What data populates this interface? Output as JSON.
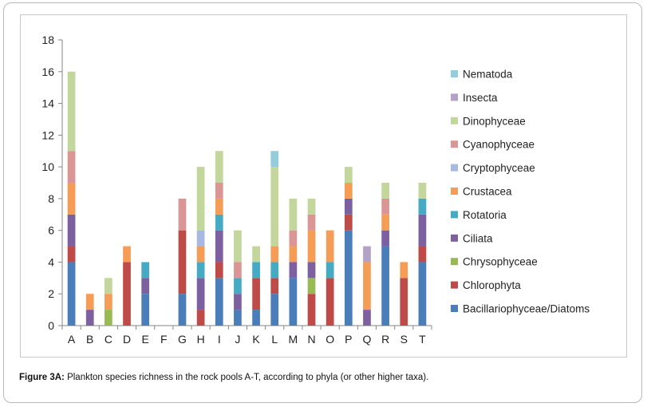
{
  "caption": {
    "label": "Figure 3A:",
    "text": " Plankton species richness in the rock pools A-T, according to phyla (or other higher taxa)."
  },
  "chart_data": {
    "type": "bar",
    "stacked": true,
    "title": "",
    "xlabel": "",
    "ylabel": "",
    "ylim": [
      0,
      18
    ],
    "yticks": [
      0,
      2,
      4,
      6,
      8,
      10,
      12,
      14,
      16,
      18
    ],
    "grid": false,
    "legend_position": "right",
    "categories": [
      "A",
      "B",
      "C",
      "D",
      "E",
      "F",
      "G",
      "H",
      "I",
      "J",
      "K",
      "L",
      "M",
      "N",
      "O",
      "P",
      "Q",
      "R",
      "S",
      "T"
    ],
    "series": [
      {
        "name": "Bacillariophyceae/Diatoms",
        "color": "#4a7ebb",
        "values": [
          4,
          0,
          0,
          0,
          2,
          0,
          2,
          0,
          3,
          1,
          1,
          2,
          3,
          0,
          0,
          6,
          0,
          5,
          0,
          4
        ]
      },
      {
        "name": "Chlorophyta",
        "color": "#be4b48",
        "values": [
          1,
          0,
          0,
          4,
          0,
          0,
          4,
          1,
          1,
          0,
          2,
          1,
          0,
          2,
          3,
          1,
          0,
          0,
          3,
          1
        ]
      },
      {
        "name": "Chrysophyceae",
        "color": "#98b954",
        "values": [
          0,
          0,
          1,
          0,
          0,
          0,
          0,
          0,
          0,
          0,
          0,
          0,
          0,
          1,
          0,
          0,
          0,
          0,
          0,
          0
        ]
      },
      {
        "name": "Ciliata",
        "color": "#7d60a0",
        "values": [
          2,
          1,
          0,
          0,
          1,
          0,
          0,
          2,
          2,
          1,
          0,
          0,
          1,
          1,
          0,
          1,
          1,
          1,
          0,
          2
        ]
      },
      {
        "name": "Rotatoria",
        "color": "#46aac5",
        "values": [
          0,
          0,
          0,
          0,
          1,
          0,
          0,
          1,
          1,
          1,
          1,
          1,
          0,
          0,
          1,
          0,
          0,
          0,
          0,
          1
        ]
      },
      {
        "name": "Crustacea",
        "color": "#f59d56",
        "values": [
          2,
          1,
          1,
          1,
          0,
          0,
          0,
          1,
          1,
          0,
          0,
          1,
          1,
          2,
          2,
          1,
          3,
          1,
          1,
          0
        ]
      },
      {
        "name": "Cryptophyceae",
        "color": "#a7b9e3",
        "values": [
          0,
          0,
          0,
          0,
          0,
          0,
          0,
          1,
          0,
          0,
          0,
          0,
          0,
          0,
          0,
          0,
          0,
          0,
          0,
          0
        ]
      },
      {
        "name": "Cyanophyceae",
        "color": "#d99694",
        "values": [
          2,
          0,
          0,
          0,
          0,
          0,
          2,
          0,
          1,
          1,
          0,
          0,
          1,
          1,
          0,
          0,
          0,
          1,
          0,
          0
        ]
      },
      {
        "name": "Dinophyceae",
        "color": "#c3d69b",
        "values": [
          5,
          0,
          1,
          0,
          0,
          0,
          0,
          4,
          2,
          2,
          1,
          5,
          2,
          1,
          0,
          1,
          0,
          1,
          0,
          1
        ]
      },
      {
        "name": "Insecta",
        "color": "#b3a2c7",
        "values": [
          0,
          0,
          0,
          0,
          0,
          0,
          0,
          0,
          0,
          0,
          0,
          0,
          0,
          0,
          0,
          0,
          1,
          0,
          0,
          0
        ]
      },
      {
        "name": "Nematoda",
        "color": "#93cddd",
        "values": [
          0,
          0,
          0,
          0,
          0,
          0,
          0,
          0,
          0,
          0,
          0,
          1,
          0,
          0,
          0,
          0,
          0,
          0,
          0,
          0
        ]
      }
    ]
  }
}
